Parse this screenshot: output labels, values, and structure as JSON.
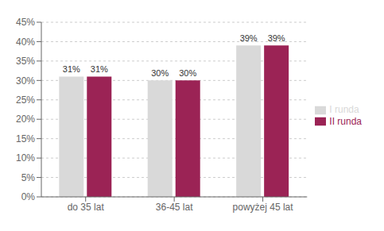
{
  "chart_data": {
    "type": "bar",
    "categories": [
      "do 35 lat",
      "36-45 lat",
      "powyżej 45 lat"
    ],
    "series": [
      {
        "name": "I runda",
        "color": "#d9d9d9",
        "values": [
          31,
          30,
          39
        ],
        "value_labels": [
          "31%",
          "30%",
          "39%"
        ]
      },
      {
        "name": "II runda",
        "color": "#9b2355",
        "values": [
          31,
          30,
          39
        ],
        "value_labels": [
          "31%",
          "30%",
          "39%"
        ]
      }
    ],
    "ylim": [
      0,
      45
    ],
    "yticks": [
      {
        "value": 0,
        "label": "0%"
      },
      {
        "value": 5,
        "label": "5%"
      },
      {
        "value": 10,
        "label": "10%"
      },
      {
        "value": 15,
        "label": "15%"
      },
      {
        "value": 20,
        "label": "20%"
      },
      {
        "value": 25,
        "label": "25%"
      },
      {
        "value": 30,
        "label": "30%"
      },
      {
        "value": 35,
        "label": "35%"
      },
      {
        "value": 40,
        "label": "40%"
      },
      {
        "value": 45,
        "label": "45%"
      }
    ],
    "grid": true,
    "legend": "right",
    "data_labels": true
  }
}
